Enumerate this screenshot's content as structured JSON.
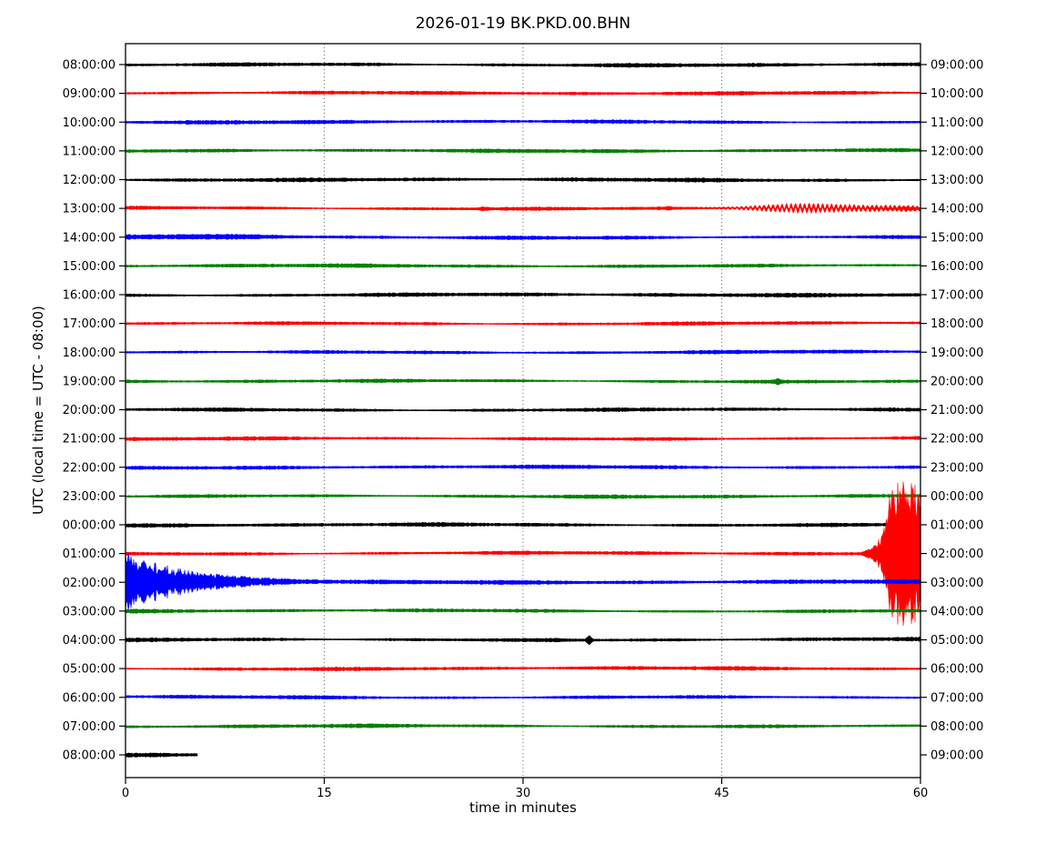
{
  "chart_data": {
    "type": "line",
    "subtype": "helicorder-dayplot-seismogram",
    "title": "2026-01-19 BK.PKD.00.BHN",
    "xlabel": "time in minutes",
    "ylabel": "UTC (local time = UTC - 08:00)",
    "x_ticks": [
      0,
      15,
      30,
      45,
      60
    ],
    "x_range": [
      0,
      60
    ],
    "grid_minutes": [
      15,
      30,
      45
    ],
    "minutes_per_row": 60,
    "trace_color_cycle": [
      "#000000",
      "#ff0000",
      "#0000ff",
      "#008000"
    ],
    "rows": [
      {
        "utc_left": "08:00:00",
        "utc_right": "09:00:00",
        "color": "#000000",
        "base_amp": 1.35,
        "events": []
      },
      {
        "utc_left": "09:00:00",
        "utc_right": "10:00:00",
        "color": "#ff0000",
        "base_amp": 1.2,
        "events": []
      },
      {
        "utc_left": "10:00:00",
        "utc_right": "11:00:00",
        "color": "#0000ff",
        "base_amp": 1.25,
        "events": []
      },
      {
        "utc_left": "11:00:00",
        "utc_right": "12:00:00",
        "color": "#008000",
        "base_amp": 1.2,
        "events": []
      },
      {
        "utc_left": "12:00:00",
        "utc_right": "13:00:00",
        "color": "#000000",
        "base_amp": 1.3,
        "events": []
      },
      {
        "utc_left": "13:00:00",
        "utc_right": "14:00:00",
        "color": "#ff0000",
        "base_amp": 1.2,
        "events": [
          {
            "type": "spike",
            "t": 27,
            "amp": 0.9,
            "sigma": 0.3
          },
          {
            "type": "spike",
            "t": 41,
            "amp": 0.8,
            "sigma": 0.3
          },
          {
            "type": "spindle",
            "start": 42.5,
            "end": 60,
            "peak": 51,
            "sigma": 4.2,
            "amp": 3.2,
            "wavelength": 0.34,
            "amp2": 1.3,
            "peak2": 57.5,
            "sigma2": 4.0
          }
        ]
      },
      {
        "utc_left": "14:00:00",
        "utc_right": "15:00:00",
        "color": "#0000ff",
        "base_amp": 1.35,
        "events": [
          {
            "type": "spike",
            "t": 4,
            "amp": 0.5,
            "sigma": 7
          }
        ]
      },
      {
        "utc_left": "15:00:00",
        "utc_right": "16:00:00",
        "color": "#008000",
        "base_amp": 1.2,
        "events": []
      },
      {
        "utc_left": "16:00:00",
        "utc_right": "17:00:00",
        "color": "#000000",
        "base_amp": 1.3,
        "events": []
      },
      {
        "utc_left": "17:00:00",
        "utc_right": "18:00:00",
        "color": "#ff0000",
        "base_amp": 1.2,
        "events": []
      },
      {
        "utc_left": "18:00:00",
        "utc_right": "19:00:00",
        "color": "#0000ff",
        "base_amp": 1.2,
        "events": []
      },
      {
        "utc_left": "19:00:00",
        "utc_right": "20:00:00",
        "color": "#008000",
        "base_amp": 1.2,
        "events": [
          {
            "type": "spike",
            "t": 49.2,
            "amp": 1.8,
            "sigma": 0.2
          }
        ]
      },
      {
        "utc_left": "20:00:00",
        "utc_right": "21:00:00",
        "color": "#000000",
        "base_amp": 1.3,
        "events": []
      },
      {
        "utc_left": "21:00:00",
        "utc_right": "22:00:00",
        "color": "#ff0000",
        "base_amp": 1.2,
        "events": []
      },
      {
        "utc_left": "22:00:00",
        "utc_right": "23:00:00",
        "color": "#0000ff",
        "base_amp": 1.2,
        "events": []
      },
      {
        "utc_left": "23:00:00",
        "utc_right": "00:00:00",
        "color": "#008000",
        "base_amp": 1.2,
        "events": []
      },
      {
        "utc_left": "00:00:00",
        "utc_right": "01:00:00",
        "color": "#000000",
        "base_amp": 1.35,
        "events": []
      },
      {
        "utc_left": "01:00:00",
        "utc_right": "02:00:00",
        "color": "#ff0000",
        "base_amp": 1.2,
        "events": [
          {
            "type": "burst",
            "start": 55.6,
            "full": 57.8,
            "rise": 0.55,
            "amp": 62
          }
        ]
      },
      {
        "utc_left": "02:00:00",
        "utc_right": "03:00:00",
        "color": "#0000ff",
        "base_amp": 1.3,
        "events": [
          {
            "type": "decay",
            "start": 0,
            "amp": 22,
            "tau": 4.2,
            "tail_amp": 1.4,
            "tail_tau": 14
          }
        ]
      },
      {
        "utc_left": "03:00:00",
        "utc_right": "04:00:00",
        "color": "#008000",
        "base_amp": 1.2,
        "events": []
      },
      {
        "utc_left": "04:00:00",
        "utc_right": "05:00:00",
        "color": "#000000",
        "base_amp": 1.3,
        "events": [
          {
            "type": "spike",
            "t": 35,
            "amp": 3.8,
            "sigma": 0.18
          }
        ]
      },
      {
        "utc_left": "05:00:00",
        "utc_right": "06:00:00",
        "color": "#ff0000",
        "base_amp": 1.2,
        "events": []
      },
      {
        "utc_left": "06:00:00",
        "utc_right": "07:00:00",
        "color": "#0000ff",
        "base_amp": 1.2,
        "events": []
      },
      {
        "utc_left": "07:00:00",
        "utc_right": "08:00:00",
        "color": "#008000",
        "base_amp": 1.2,
        "events": []
      },
      {
        "utc_left": "08:00:00",
        "utc_right": "09:00:00",
        "color": "#000000",
        "base_amp": 1.65,
        "data_end_minute": 5.4,
        "events": []
      }
    ],
    "notable_events": [
      {
        "row_utc": "13:00:00",
        "description": "emergent teleseismic oscillation",
        "minutes": [
          43,
          60
        ],
        "peak_minute": 51
      },
      {
        "row_utc": "19:00:00",
        "description": "small impulsive spike",
        "minute": 49.2
      },
      {
        "row_utc": "01:00:00",
        "description": "large clipped earthquake burst",
        "minutes": [
          55.7,
          60
        ]
      },
      {
        "row_utc": "02:00:00",
        "description": "decaying coda of large event",
        "minutes": [
          0,
          20
        ]
      },
      {
        "row_utc": "04:00:00",
        "description": "small impulsive spike",
        "minute": 35
      },
      {
        "row_utc": "08:00:00",
        "description": "trace data ends",
        "minute": 5.4
      }
    ]
  }
}
